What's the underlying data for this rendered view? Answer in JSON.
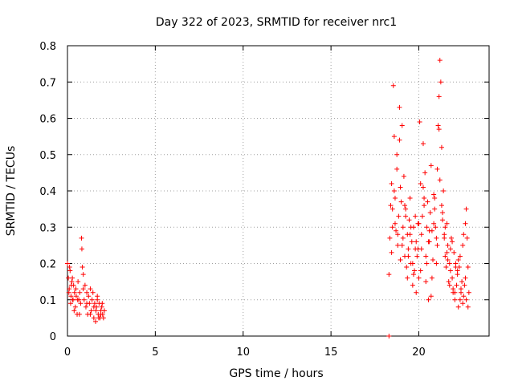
{
  "chart_data": {
    "type": "scatter",
    "title": "Day 322 of 2023, SRMTID for receiver nrc1",
    "xlabel": "GPS time / hours",
    "ylabel": "SRMTID / TECUs",
    "xlim": [
      0,
      24
    ],
    "ylim": [
      0,
      0.8
    ],
    "xticks": [
      0,
      5,
      10,
      15,
      20
    ],
    "yticks": [
      0,
      0.1,
      0.2,
      0.3,
      0.4,
      0.5,
      0.6,
      0.7,
      0.8
    ],
    "xtick_labels": [
      "0",
      "5",
      "10",
      "15",
      "20"
    ],
    "ytick_labels": [
      "0",
      "0.1",
      "0.2",
      "0.3",
      "0.4",
      "0.5",
      "0.6",
      "0.7",
      "0.8"
    ],
    "grid": true,
    "marker": "+",
    "color": "#ff0000",
    "series": [
      {
        "name": "nrc1",
        "x": [
          0.0,
          0.05,
          0.1,
          0.15,
          0.2,
          0.25,
          0.3,
          0.35,
          0.4,
          0.45,
          0.5,
          0.55,
          0.6,
          0.65,
          0.7,
          0.75,
          0.8,
          0.82,
          0.85,
          0.9,
          0.95,
          1.0,
          1.05,
          1.1,
          1.15,
          1.2,
          1.25,
          1.3,
          1.35,
          1.4,
          1.45,
          1.5,
          1.55,
          1.6,
          1.65,
          1.7,
          1.75,
          1.8,
          1.85,
          1.9,
          1.95,
          2.0,
          2.05,
          2.1,
          0.08,
          0.18,
          0.28,
          0.38,
          0.48,
          0.58,
          0.68,
          0.9,
          1.1,
          1.3,
          1.5,
          1.7,
          1.9,
          0.12,
          0.22,
          0.32,
          1.62,
          1.78,
          1.98,
          18.3,
          18.3,
          18.35,
          18.4,
          18.45,
          18.5,
          18.55,
          18.6,
          18.65,
          18.7,
          18.75,
          18.8,
          18.85,
          18.9,
          18.95,
          19.0,
          19.05,
          19.1,
          19.15,
          19.2,
          19.25,
          19.3,
          19.35,
          19.4,
          19.45,
          19.5,
          19.55,
          19.6,
          19.65,
          19.7,
          19.75,
          19.8,
          19.85,
          19.9,
          19.95,
          20.0,
          20.05,
          20.1,
          20.15,
          20.2,
          20.25,
          20.3,
          20.35,
          20.4,
          20.45,
          20.5,
          20.55,
          20.6,
          20.65,
          20.7,
          20.75,
          20.8,
          20.85,
          20.9,
          20.95,
          21.0,
          21.05,
          21.1,
          21.15,
          21.2,
          21.25,
          21.3,
          21.35,
          21.4,
          21.45,
          21.5,
          21.55,
          21.6,
          21.65,
          21.7,
          21.75,
          21.8,
          21.85,
          21.9,
          21.95,
          22.0,
          22.05,
          22.1,
          22.15,
          22.2,
          22.25,
          22.3,
          22.35,
          22.4,
          22.45,
          22.5,
          22.55,
          22.6,
          22.65,
          22.7,
          22.75,
          22.8,
          22.85,
          18.45,
          18.6,
          18.75,
          18.9,
          19.05,
          19.2,
          19.35,
          19.5,
          19.65,
          19.8,
          19.95,
          20.1,
          20.25,
          20.4,
          20.55,
          20.7,
          20.85,
          21.0,
          21.15,
          21.3,
          21.45,
          21.6,
          21.75,
          21.9,
          22.05,
          22.2,
          22.35,
          22.5,
          22.65,
          22.8,
          18.5,
          18.65,
          18.8,
          18.95,
          19.1,
          19.25,
          19.4,
          19.55,
          19.7,
          19.85,
          20.0,
          20.15,
          20.3,
          20.45,
          20.6,
          20.75,
          20.9,
          21.05,
          21.2,
          21.35,
          21.5,
          21.65,
          21.8,
          21.95,
          22.1,
          22.25,
          22.4,
          22.55,
          22.7
        ],
        "y": [
          0.2,
          0.16,
          0.13,
          0.18,
          0.11,
          0.15,
          0.1,
          0.14,
          0.12,
          0.08,
          0.11,
          0.06,
          0.15,
          0.1,
          0.12,
          0.09,
          0.27,
          0.24,
          0.19,
          0.13,
          0.1,
          0.14,
          0.08,
          0.12,
          0.06,
          0.11,
          0.09,
          0.13,
          0.07,
          0.1,
          0.12,
          0.05,
          0.09,
          0.04,
          0.08,
          0.1,
          0.06,
          0.09,
          0.05,
          0.07,
          0.08,
          0.06,
          0.05,
          0.07,
          0.12,
          0.09,
          0.16,
          0.07,
          0.13,
          0.1,
          0.06,
          0.17,
          0.09,
          0.06,
          0.08,
          0.11,
          0.06,
          0.19,
          0.14,
          0.1,
          0.07,
          0.05,
          0.09,
          0.0,
          0.17,
          0.27,
          0.36,
          0.42,
          0.3,
          0.69,
          0.55,
          0.38,
          0.29,
          0.46,
          0.25,
          0.33,
          0.63,
          0.21,
          0.37,
          0.58,
          0.3,
          0.44,
          0.22,
          0.35,
          0.19,
          0.28,
          0.24,
          0.32,
          0.38,
          0.2,
          0.26,
          0.14,
          0.3,
          0.18,
          0.24,
          0.12,
          0.22,
          0.31,
          0.16,
          0.59,
          0.42,
          0.28,
          0.33,
          0.53,
          0.38,
          0.45,
          0.22,
          0.3,
          0.37,
          0.1,
          0.26,
          0.34,
          0.47,
          0.29,
          0.21,
          0.39,
          0.35,
          0.3,
          0.27,
          0.46,
          0.58,
          0.66,
          0.76,
          0.7,
          0.52,
          0.34,
          0.4,
          0.28,
          0.22,
          0.19,
          0.31,
          0.25,
          0.15,
          0.2,
          0.18,
          0.27,
          0.16,
          0.12,
          0.23,
          0.1,
          0.2,
          0.14,
          0.17,
          0.08,
          0.19,
          0.22,
          0.12,
          0.15,
          0.09,
          0.11,
          0.14,
          0.31,
          0.35,
          0.27,
          0.19,
          0.12,
          0.23,
          0.4,
          0.5,
          0.54,
          0.25,
          0.36,
          0.16,
          0.28,
          0.2,
          0.33,
          0.24,
          0.18,
          0.41,
          0.15,
          0.26,
          0.11,
          0.31,
          0.2,
          0.57,
          0.36,
          0.27,
          0.23,
          0.14,
          0.26,
          0.12,
          0.18,
          0.1,
          0.25,
          0.16,
          0.08,
          0.35,
          0.31,
          0.28,
          0.41,
          0.27,
          0.33,
          0.22,
          0.3,
          0.17,
          0.26,
          0.31,
          0.24,
          0.36,
          0.2,
          0.29,
          0.16,
          0.38,
          0.25,
          0.43,
          0.32,
          0.3,
          0.21,
          0.24,
          0.13,
          0.19,
          0.21,
          0.13,
          0.28,
          0.1
        ]
      }
    ]
  }
}
